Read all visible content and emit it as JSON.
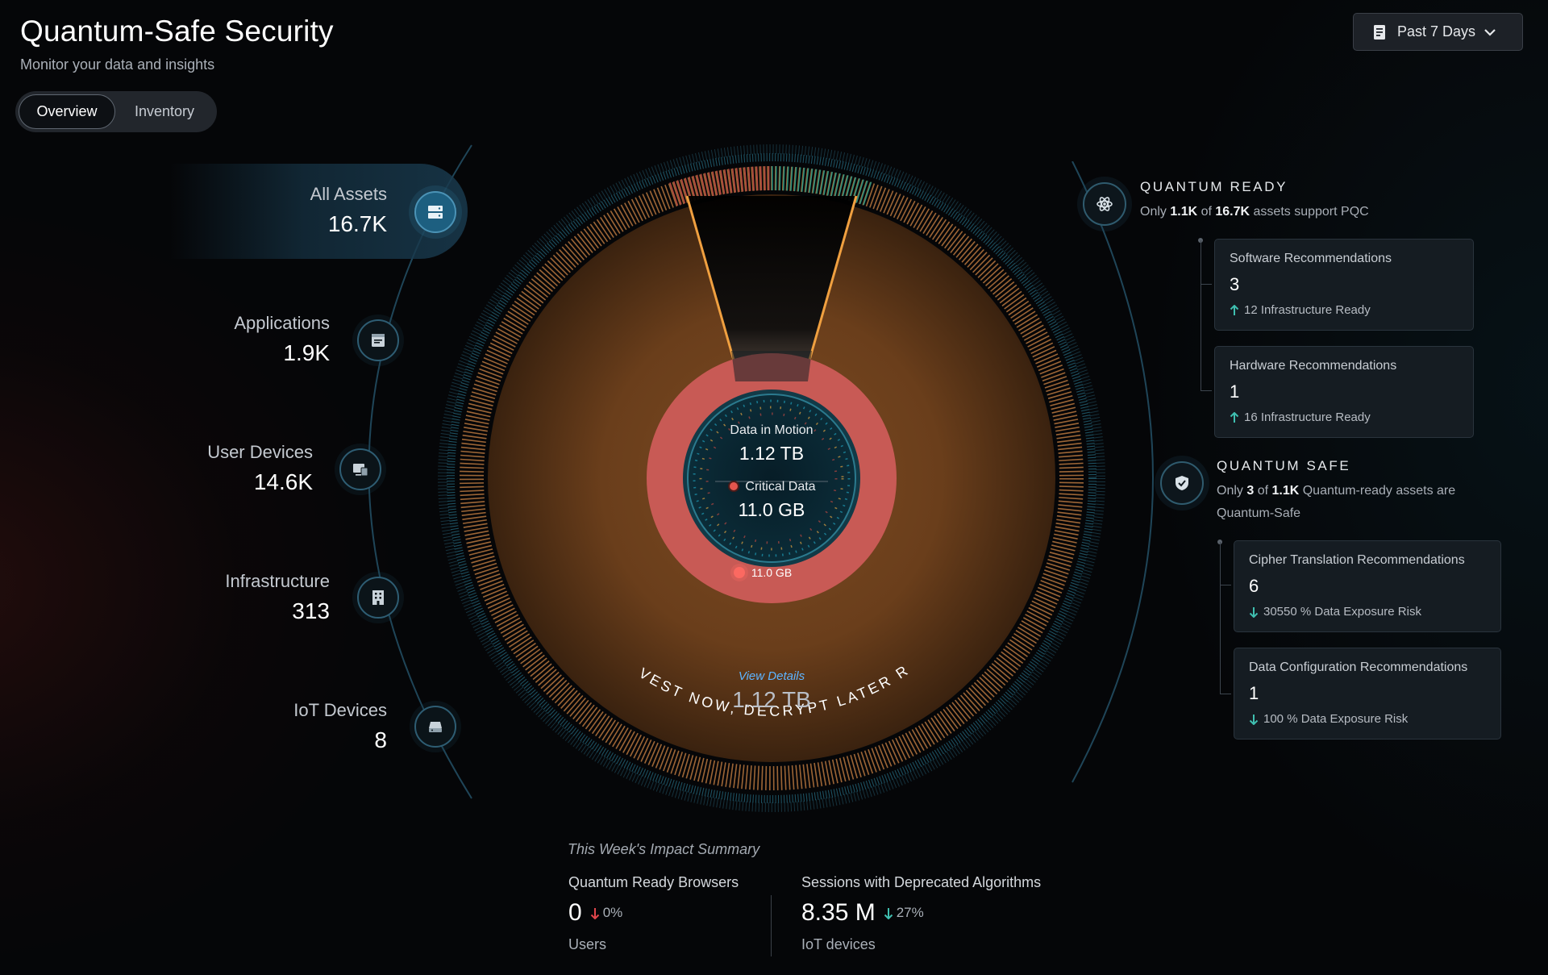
{
  "header": {
    "title": "Quantum-Safe Security",
    "subtitle": "Monitor your data and insights"
  },
  "tabs": [
    {
      "label": "Overview",
      "active": true
    },
    {
      "label": "Inventory",
      "active": false
    }
  ],
  "date_picker": {
    "label": "Past 7 Days",
    "icon": "document-icon"
  },
  "assets": [
    {
      "label": "All Assets",
      "value": "16.7K",
      "icon": "server-icon",
      "active": true
    },
    {
      "label": "Applications",
      "value": "1.9K",
      "icon": "application-icon"
    },
    {
      "label": "User Devices",
      "value": "14.6K",
      "icon": "devices-icon"
    },
    {
      "label": "Infrastructure",
      "value": "313",
      "icon": "building-icon"
    },
    {
      "label": "IoT Devices",
      "value": "8",
      "icon": "iot-device-icon"
    }
  ],
  "donut": {
    "data_in_motion_label": "Data in Motion",
    "data_in_motion_value": "1.12 TB",
    "critical_data_label": "Critical Data",
    "critical_data_value": "11.0 GB",
    "critical_ring_label": "11.0 GB",
    "view_details": "View Details",
    "total": "1.12 TB",
    "arc_text": "HARVEST NOW, DECRYPT LATER RISK",
    "colors": {
      "orange": "#e38a3a",
      "critical": "#c85a55",
      "teal": "#1b8fa8"
    }
  },
  "quantum_ready": {
    "title": "QUANTUM READY",
    "desc_pre": "Only ",
    "desc_count": "1.1K",
    "desc_mid": " of ",
    "desc_total": "16.7K",
    "desc_post": " assets support PQC",
    "icon": "atom-icon",
    "cards": [
      {
        "title": "Software Recommendations",
        "value": "3",
        "foot": "12 Infrastructure Ready",
        "trend": "up"
      },
      {
        "title": "Hardware Recommendations",
        "value": "1",
        "foot": "16 Infrastructure Ready",
        "trend": "up"
      }
    ]
  },
  "quantum_safe": {
    "title": "QUANTUM SAFE",
    "desc_pre": "Only ",
    "desc_count": "3",
    "desc_mid": " of ",
    "desc_total": "1.1K",
    "desc_post": " Quantum-ready assets are Quantum-Safe",
    "icon": "shield-check-icon",
    "cards": [
      {
        "title": "Cipher Translation Recommendations",
        "value": "6",
        "foot": "30550 % Data Exposure Risk",
        "trend": "down"
      },
      {
        "title": "Data Configuration Recommendations",
        "value": "1",
        "foot": "100 % Data Exposure Risk",
        "trend": "down"
      }
    ]
  },
  "impact": {
    "title": "This Week's Impact Summary",
    "metrics": [
      {
        "label": "Quantum Ready Browsers",
        "value": "0",
        "change": "0%",
        "trend": "down",
        "trend_color": "#e0454b",
        "sub": "Users"
      },
      {
        "label": "Sessions with Deprecated Algorithms",
        "value": "8.35 M",
        "change": "27%",
        "trend": "down",
        "trend_color": "#3fbfb0",
        "sub": "IoT devices"
      }
    ]
  }
}
